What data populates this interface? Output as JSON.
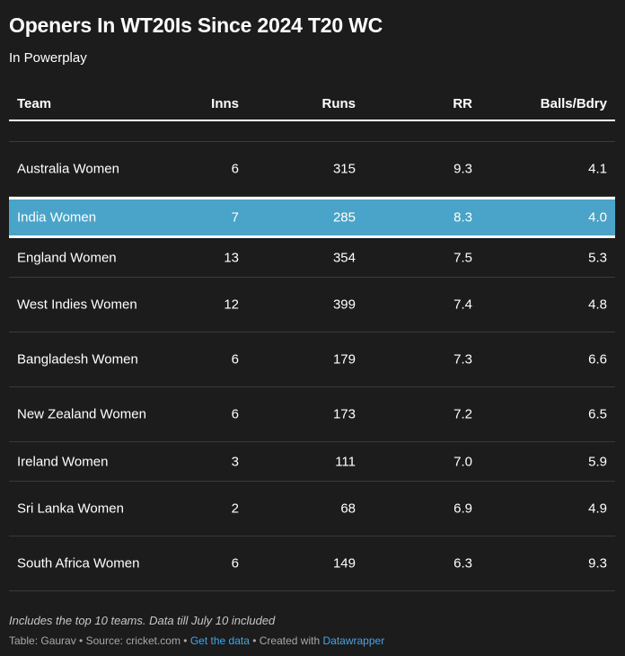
{
  "title": "Openers In WT20Is Since 2024 T20 WC",
  "subtitle": "In Powerplay",
  "chart_data": {
    "type": "table",
    "columns": [
      "Team",
      "Inns",
      "Runs",
      "RR",
      "Balls/Bdry"
    ],
    "rows": [
      {
        "team": "Australia Women",
        "inns": "6",
        "runs": "315",
        "rr": "9.3",
        "balls_bdry": "4.1"
      },
      {
        "team": "India Women",
        "inns": "7",
        "runs": "285",
        "rr": "8.3",
        "balls_bdry": "4.0"
      },
      {
        "team": "England Women",
        "inns": "13",
        "runs": "354",
        "rr": "7.5",
        "balls_bdry": "5.3"
      },
      {
        "team": "West Indies Women",
        "inns": "12",
        "runs": "399",
        "rr": "7.4",
        "balls_bdry": "4.8"
      },
      {
        "team": "Bangladesh Women",
        "inns": "6",
        "runs": "179",
        "rr": "7.3",
        "balls_bdry": "6.6"
      },
      {
        "team": "New Zealand Women",
        "inns": "6",
        "runs": "173",
        "rr": "7.2",
        "balls_bdry": "6.5"
      },
      {
        "team": "Ireland Women",
        "inns": "3",
        "runs": "111",
        "rr": "7.0",
        "balls_bdry": "5.9"
      },
      {
        "team": "Sri Lanka Women",
        "inns": "2",
        "runs": "68",
        "rr": "6.9",
        "balls_bdry": "4.9"
      },
      {
        "team": "South Africa Women",
        "inns": "6",
        "runs": "149",
        "rr": "6.3",
        "balls_bdry": "9.3"
      }
    ],
    "highlighted_row": "India Women",
    "highlight_color": "#4aa3c8"
  },
  "footer": {
    "notes": "Includes the top 10 teams. Data till July 10 included",
    "table_by": "Table: Gaurav",
    "source": "Source: cricket.com",
    "get_data": "Get the data",
    "created_with": "Created with",
    "datawrapper": "Datawrapper",
    "separator": " • "
  },
  "colors": {
    "background": "#1c1c1c",
    "text": "#ffffff",
    "link": "#4aa3e0"
  }
}
